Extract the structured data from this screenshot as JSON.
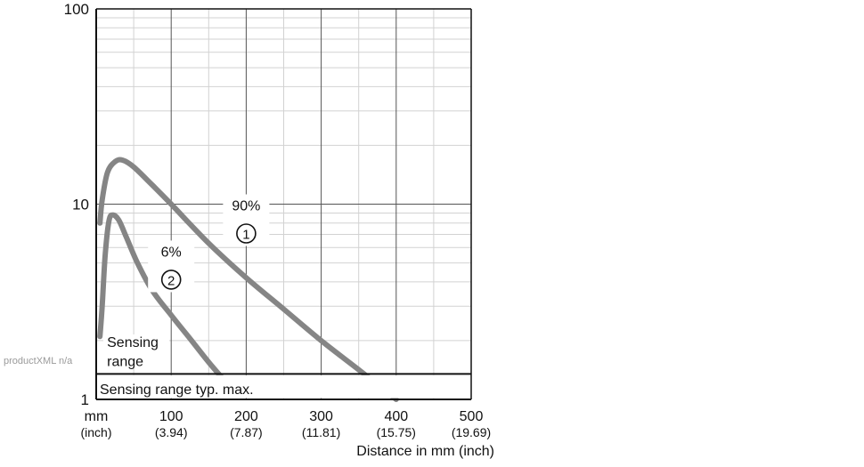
{
  "watermark": "productXML n/a",
  "chart_data": {
    "type": "line",
    "xlabel": "Distance in mm (inch)",
    "x_unit_labels": {
      "primary": "mm",
      "secondary": "(inch)"
    },
    "xlim": [
      0,
      500
    ],
    "x_ticks": [
      {
        "value": 100,
        "label": "100",
        "sublabel": "(3.94)"
      },
      {
        "value": 200,
        "label": "200",
        "sublabel": "(7.87)"
      },
      {
        "value": 300,
        "label": "300",
        "sublabel": "(11.81)"
      },
      {
        "value": 400,
        "label": "400",
        "sublabel": "(15.75)"
      },
      {
        "value": 500,
        "label": "500",
        "sublabel": "(19.69)"
      }
    ],
    "y_scale": "log",
    "ylim": [
      1,
      100
    ],
    "y_ticks": [
      {
        "value": 1,
        "label": "1"
      },
      {
        "value": 10,
        "label": "10"
      },
      {
        "value": 100,
        "label": "100"
      }
    ],
    "grid": true,
    "series": [
      {
        "name": "90%",
        "marker_label": "①",
        "color": "#858585",
        "points": [
          [
            5,
            8
          ],
          [
            8,
            10.5
          ],
          [
            15,
            14.5
          ],
          [
            25,
            16.5
          ],
          [
            35,
            16.8
          ],
          [
            50,
            15.5
          ],
          [
            75,
            12.5
          ],
          [
            100,
            10
          ],
          [
            150,
            6.3
          ],
          [
            200,
            4.2
          ],
          [
            250,
            2.9
          ],
          [
            300,
            2.0
          ],
          [
            350,
            1.42
          ],
          [
            400,
            1.0
          ]
        ]
      },
      {
        "name": "6%",
        "marker_label": "②",
        "color": "#858585",
        "points": [
          [
            5,
            2.1
          ],
          [
            8,
            3.0
          ],
          [
            12,
            5.5
          ],
          [
            17,
            8.2
          ],
          [
            22,
            8.8
          ],
          [
            30,
            8.3
          ],
          [
            40,
            6.8
          ],
          [
            55,
            5.0
          ],
          [
            75,
            3.6
          ],
          [
            100,
            2.7
          ],
          [
            125,
            2.05
          ],
          [
            150,
            1.55
          ],
          [
            175,
            1.2
          ]
        ]
      }
    ],
    "sensing_range_line": {
      "y": 1.35,
      "label": "Sensing range typ. max."
    },
    "annotations": [
      {
        "text": "Sensing",
        "x": 15,
        "y": 1.98
      },
      {
        "text": "range",
        "x": 15,
        "y": 1.58
      }
    ],
    "series_label_positions": [
      {
        "series": "90%",
        "x": 200,
        "y": 10
      },
      {
        "series": "6%",
        "x": 100,
        "y": 5.8
      }
    ]
  }
}
